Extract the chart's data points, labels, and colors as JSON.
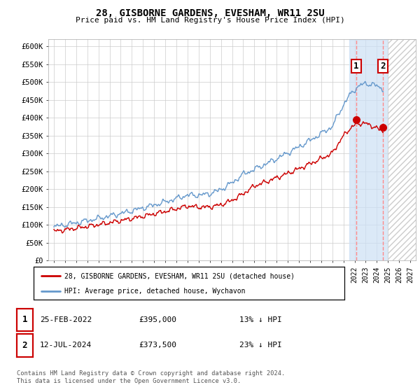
{
  "title": "28, GISBORNE GARDENS, EVESHAM, WR11 2SU",
  "subtitle": "Price paid vs. HM Land Registry's House Price Index (HPI)",
  "ylabel_ticks": [
    "£0",
    "£50K",
    "£100K",
    "£150K",
    "£200K",
    "£250K",
    "£300K",
    "£350K",
    "£400K",
    "£450K",
    "£500K",
    "£550K",
    "£600K"
  ],
  "ytick_values": [
    0,
    50000,
    100000,
    150000,
    200000,
    250000,
    300000,
    350000,
    400000,
    450000,
    500000,
    550000,
    600000
  ],
  "ylim": [
    0,
    620000
  ],
  "xlim_start": 1994.5,
  "xlim_end": 2027.5,
  "x_ticks": [
    1995,
    1996,
    1997,
    1998,
    1999,
    2000,
    2001,
    2002,
    2003,
    2004,
    2005,
    2006,
    2007,
    2008,
    2009,
    2010,
    2011,
    2012,
    2013,
    2014,
    2015,
    2016,
    2017,
    2018,
    2019,
    2020,
    2021,
    2022,
    2023,
    2024,
    2025,
    2026,
    2027
  ],
  "hpi_line_color": "#6699cc",
  "property_color": "#cc0000",
  "sale1_x": 2022.15,
  "sale1_y": 395000,
  "sale2_x": 2024.54,
  "sale2_y": 373500,
  "marker1_label": "1",
  "marker2_label": "2",
  "sale1_date": "25-FEB-2022",
  "sale1_price": "£395,000",
  "sale1_hpi": "13% ↓ HPI",
  "sale2_date": "12-JUL-2024",
  "sale2_price": "£373,500",
  "sale2_hpi": "23% ↓ HPI",
  "legend_property": "28, GISBORNE GARDENS, EVESHAM, WR11 2SU (detached house)",
  "legend_hpi": "HPI: Average price, detached house, Wychavon",
  "footer": "Contains HM Land Registry data © Crown copyright and database right 2024.\nThis data is licensed under the Open Government Licence v3.0.",
  "future_hatch_start": 2025.0,
  "sale1_vline_x": 2022.15,
  "sale2_vline_x": 2024.54,
  "highlight_start": 2021.5,
  "highlight_end": 2025.0
}
